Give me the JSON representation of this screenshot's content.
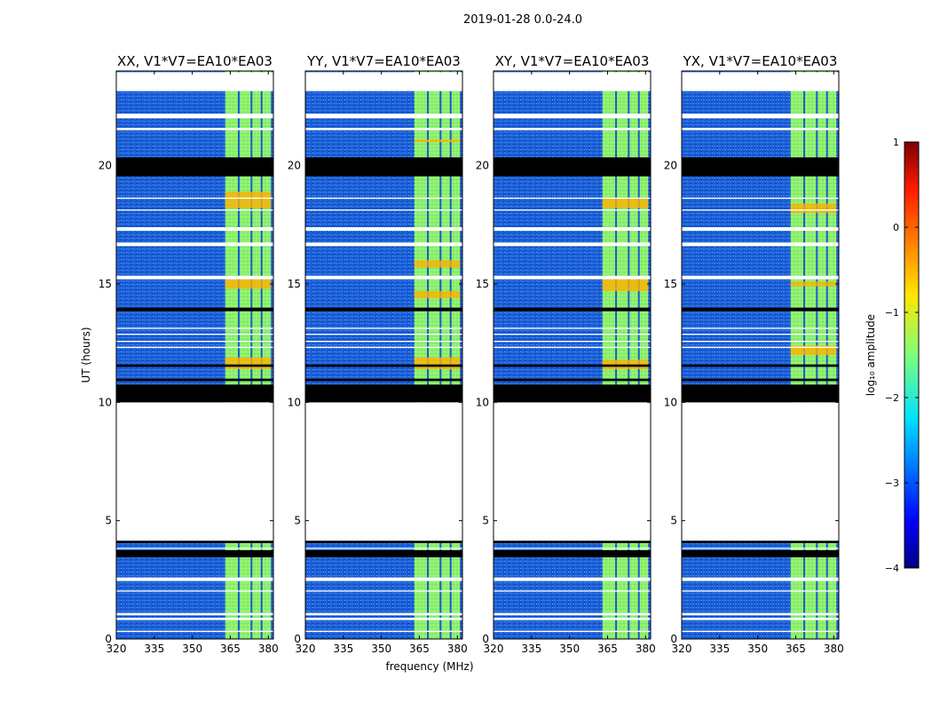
{
  "suptitle": "2019-01-28 0.0-24.0",
  "chart_data": {
    "type": "heatmap",
    "title": "2019-01-28 0.0-24.0",
    "xlabel": "frequency (MHz)",
    "ylabel": "UT (hours)",
    "xlim": [
      320,
      382
    ],
    "ylim": [
      0,
      24
    ],
    "xticks": [
      320,
      335,
      350,
      365,
      380
    ],
    "yticks": [
      0,
      5,
      10,
      15,
      20
    ],
    "panels": [
      {
        "title": "XX, V1*V7=EA10*EA03",
        "hot_rows": [
          [
            18.2,
            18.9
          ],
          [
            14.8,
            15.2
          ],
          [
            11.4,
            11.9
          ]
        ]
      },
      {
        "title": "YY, V1*V7=EA10*EA03",
        "hot_rows": [
          [
            15.7,
            16.0
          ],
          [
            14.4,
            14.7
          ],
          [
            11.4,
            11.9
          ],
          [
            21.0,
            21.1
          ]
        ]
      },
      {
        "title": "XY, V1*V7=EA10*EA03",
        "hot_rows": [
          [
            18.2,
            18.6
          ],
          [
            14.7,
            15.2
          ],
          [
            11.4,
            11.8
          ]
        ]
      },
      {
        "title": "YX, V1*V7=EA10*EA03",
        "hot_rows": [
          [
            12.0,
            12.4
          ],
          [
            14.9,
            15.1
          ],
          [
            18.0,
            18.4
          ]
        ]
      }
    ],
    "rfi_band_mhz": [
      363,
      381
    ],
    "rfi_band_level": -1.2,
    "background_level": -3.1,
    "flagged_hours": [
      [
        4.15,
        10.0
      ],
      [
        22.0,
        22.2
      ],
      [
        23.15,
        23.95
      ],
      [
        21.5,
        21.6
      ],
      [
        17.25,
        17.4
      ],
      [
        16.6,
        16.75
      ],
      [
        15.2,
        15.35
      ],
      [
        12.55,
        12.6
      ],
      [
        12.3,
        12.35
      ],
      [
        3.8,
        3.85
      ],
      [
        2.45,
        2.6
      ],
      [
        1.0,
        1.1
      ],
      [
        0.8,
        0.9
      ],
      [
        0.3,
        0.35
      ],
      [
        2.0,
        2.05
      ],
      [
        12.85,
        12.9
      ],
      [
        13.1,
        13.15
      ],
      [
        18.1,
        18.15
      ],
      [
        18.6,
        18.65
      ]
    ],
    "black_hours": [
      [
        19.55,
        20.35
      ],
      [
        10.0,
        10.75
      ],
      [
        3.45,
        3.75
      ],
      [
        4.05,
        4.15
      ],
      [
        13.85,
        14.0
      ],
      [
        11.5,
        11.6
      ],
      [
        10.9,
        11.0
      ]
    ],
    "colorbar": {
      "label": "log₁₀ amplitude",
      "range": [
        -4,
        1
      ],
      "ticks": [
        "1",
        "0",
        "−1",
        "−2",
        "−3",
        "−4"
      ],
      "colormap": "jet"
    }
  }
}
